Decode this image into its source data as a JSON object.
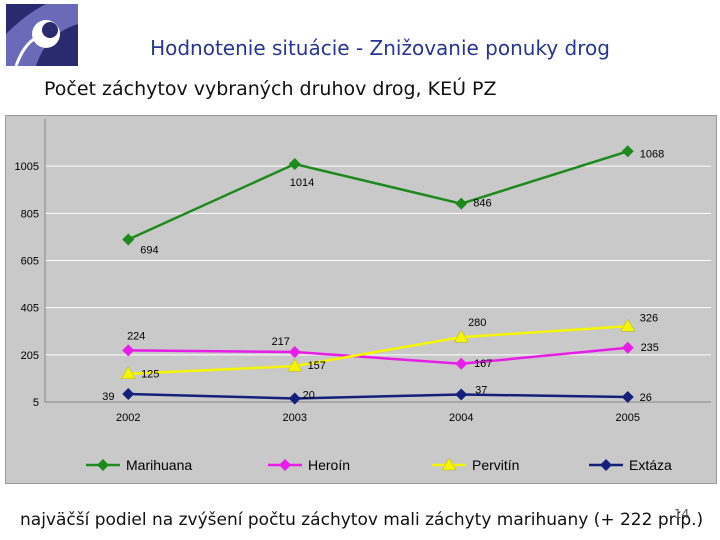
{
  "slide": {
    "title": "Hodnotenie situácie - Znižovanie ponuky drog",
    "subtitle": "Počet záchytov vybraných druhov drog, KEÚ PZ",
    "footer": "najväčší podiel na zvýšení počtu záchytov mali záchyty marihuany (+ 222 príp.)",
    "page_number": "14"
  },
  "chart_data": {
    "type": "line",
    "categories": [
      "2002",
      "2003",
      "2004",
      "2005"
    ],
    "yticks": [
      "5",
      "205",
      "405",
      "605",
      "805",
      "1005"
    ],
    "ylim": [
      5,
      1205
    ],
    "grid": true,
    "legend_position": "bottom",
    "series": [
      {
        "name": "Marihuana",
        "values": [
          694,
          1014,
          846,
          1068
        ],
        "color": "#1e8a1e",
        "marker": "diamond",
        "labels": [
          "694",
          "1014",
          "846",
          "1068"
        ]
      },
      {
        "name": "Heroín",
        "values": [
          224,
          217,
          167,
          235
        ],
        "color": "#e81ee8",
        "marker": "diamond",
        "labels": [
          "224",
          "217",
          "167",
          "235"
        ]
      },
      {
        "name": "Pervitín",
        "values": [
          125,
          157,
          280,
          326
        ],
        "color": "#f5f500",
        "marker": "triangle",
        "labels": [
          "125",
          "157",
          "280",
          "326"
        ]
      },
      {
        "name": "Extáza",
        "values": [
          39,
          20,
          37,
          26
        ],
        "color": "#14207a",
        "marker": "diamond",
        "labels": [
          "39",
          "20",
          "37",
          "26"
        ]
      }
    ]
  }
}
